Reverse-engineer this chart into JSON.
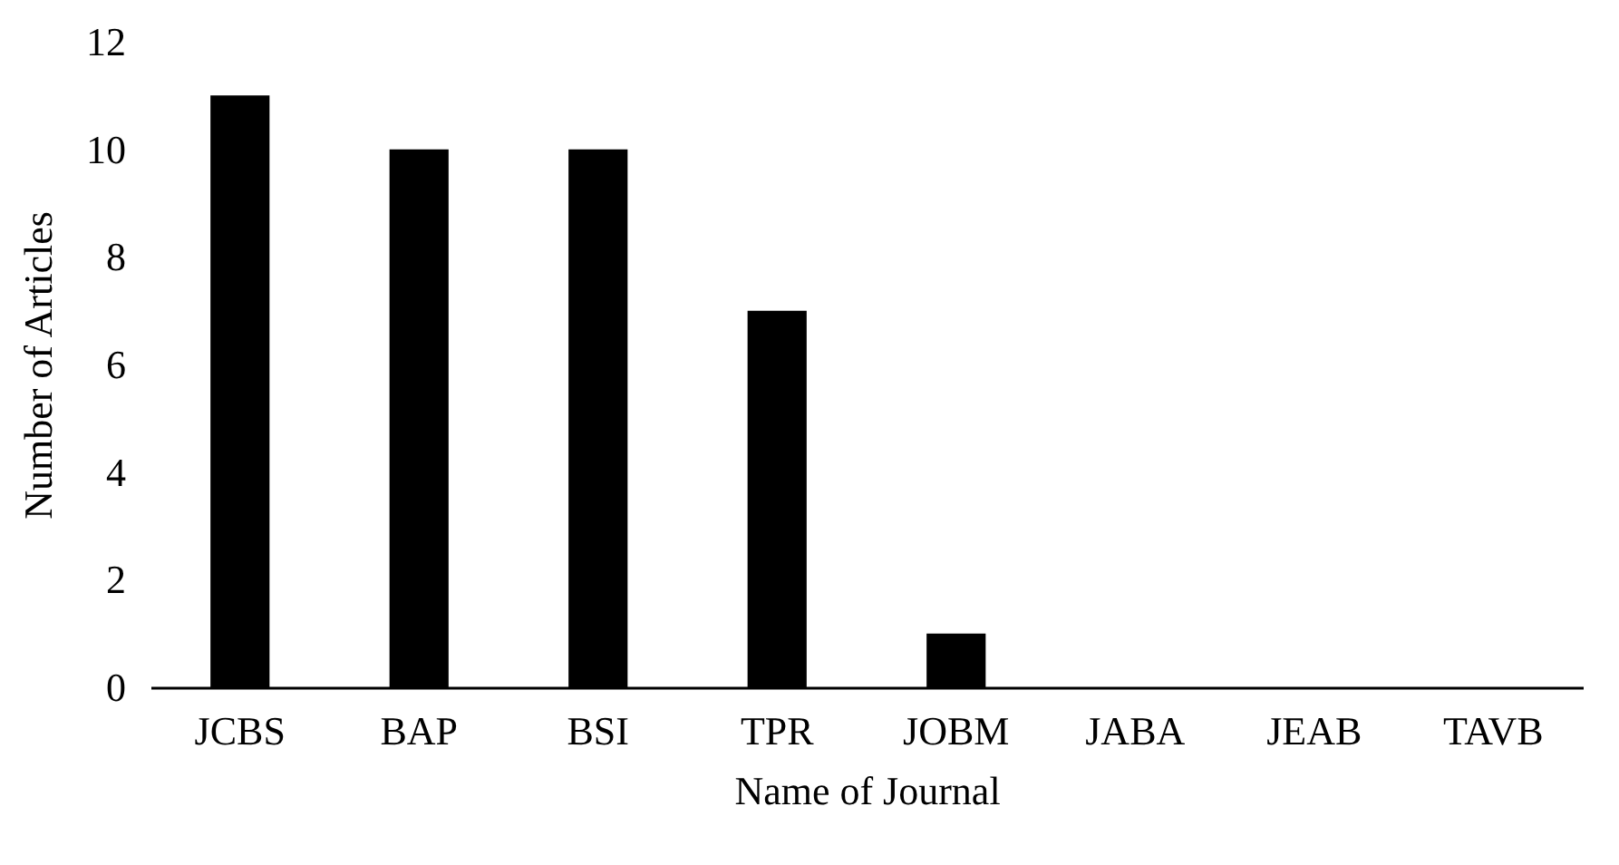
{
  "chart_data": {
    "type": "bar",
    "xlabel": "Name of Journal",
    "ylabel": "Number of Articles",
    "categories": [
      "JCBS",
      "BAP",
      "BSI",
      "TPR",
      "JOBM",
      "JABA",
      "JEAB",
      "TAVB"
    ],
    "values": [
      11,
      10,
      10,
      7,
      1,
      0,
      0,
      0
    ],
    "color": "#000000",
    "ylim": [
      0,
      12
    ],
    "yticks": [
      0,
      2,
      4,
      6,
      8,
      10,
      12
    ],
    "grid": false
  }
}
